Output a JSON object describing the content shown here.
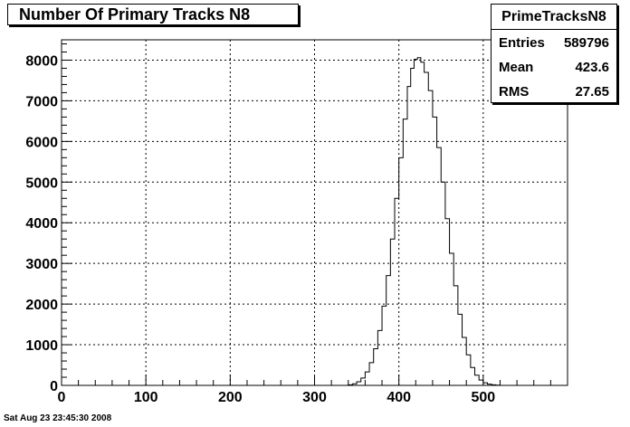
{
  "chart_data": {
    "type": "histogram",
    "title": "Number Of Primary Tracks N8",
    "xlabel": "",
    "ylabel": "",
    "xlim": [
      0,
      600
    ],
    "ylim": [
      0,
      8500
    ],
    "xticks": [
      0,
      100,
      200,
      300,
      400,
      500
    ],
    "xtick_labels": [
      "0",
      "100",
      "200",
      "300",
      "400",
      "500"
    ],
    "yticks": [
      0,
      1000,
      2000,
      3000,
      4000,
      5000,
      6000,
      7000,
      8000
    ],
    "ytick_labels": [
      "0",
      "1000",
      "2000",
      "3000",
      "4000",
      "5000",
      "6000",
      "7000",
      "8000"
    ],
    "grid": true,
    "series": [
      {
        "x": [
          300,
          320,
          330,
          340,
          345,
          350,
          355,
          360,
          365,
          370,
          375,
          380,
          385,
          390,
          395,
          400,
          405,
          410,
          414,
          418,
          422,
          426,
          430,
          435,
          440,
          445,
          450,
          455,
          460,
          465,
          470,
          475,
          480,
          485,
          490,
          495,
          500,
          505,
          510,
          515,
          520,
          530,
          540,
          560,
          600
        ],
        "values": [
          0,
          0,
          0,
          15,
          40,
          90,
          180,
          330,
          560,
          900,
          1350,
          1950,
          2700,
          3600,
          4600,
          5600,
          6550,
          7350,
          7800,
          8020,
          8060,
          7950,
          7700,
          7250,
          6600,
          5850,
          5000,
          4100,
          3250,
          2450,
          1750,
          1180,
          750,
          440,
          250,
          130,
          65,
          30,
          15,
          5,
          0,
          0,
          0,
          0,
          0
        ],
        "color": "#000000"
      }
    ]
  },
  "stats": {
    "name": "PrimeTracksN8",
    "entries_label": "Entries",
    "entries_value": "589796",
    "mean_label": "Mean",
    "mean_value": "423.6",
    "rms_label": "RMS",
    "rms_value": "27.65"
  },
  "footer": "Sat Aug 23 23:45:30 2008"
}
